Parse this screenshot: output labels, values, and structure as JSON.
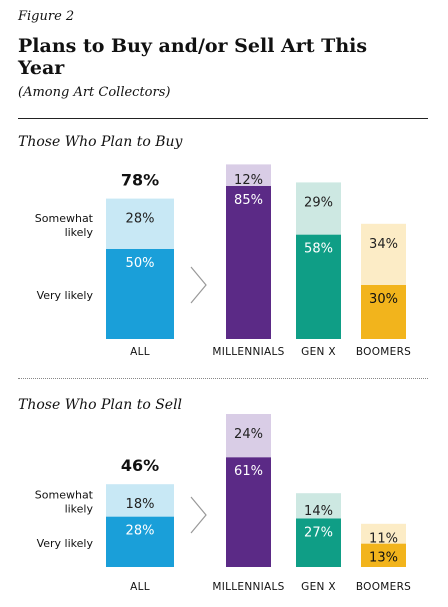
{
  "figure_label": "Figure 2",
  "title": "Plans to Buy and/or Sell Art This Year",
  "subtitle": "(Among Art Collectors)",
  "colors": {
    "all_very": "#1a9fd9",
    "all_somewhat": "#c8e8f5",
    "millennials_very": "#5b2a86",
    "millennials_somewhat": "#d9cde6",
    "genx_very": "#0f9e86",
    "genx_somewhat": "#cde8e2",
    "boomers_very": "#f2b41c",
    "boomers_somewhat": "#fcecc6"
  },
  "chart_data": [
    {
      "type": "bar",
      "stacked": true,
      "title": "Those Who Plan to Buy",
      "categories": [
        "ALL",
        "MILLENNIALS",
        "GEN X",
        "BOOMERS"
      ],
      "series": [
        {
          "name": "Very likely",
          "values": [
            50,
            85,
            58,
            30
          ]
        },
        {
          "name": "Somewhat likely",
          "values": [
            28,
            12,
            29,
            34
          ]
        }
      ],
      "totals": [
        {
          "category": "ALL",
          "label": "78%",
          "value": 78
        }
      ],
      "segment_labels": {
        "Very likely": [
          "50%",
          "85%",
          "58%",
          "30%"
        ],
        "Somewhat likely": [
          "28%",
          "12%",
          "29%",
          "34%"
        ]
      },
      "row_labels": {
        "somewhat": [
          "Somewhat",
          "likely"
        ],
        "very": "Very likely"
      }
    },
    {
      "type": "bar",
      "stacked": true,
      "title": "Those Who Plan to Sell",
      "categories": [
        "ALL",
        "MILLENNIALS",
        "GEN X",
        "BOOMERS"
      ],
      "series": [
        {
          "name": "Very likely",
          "values": [
            28,
            61,
            27,
            13
          ]
        },
        {
          "name": "Somewhat likely",
          "values": [
            18,
            24,
            14,
            11
          ]
        }
      ],
      "totals": [
        {
          "category": "ALL",
          "label": "46%",
          "value": 46
        }
      ],
      "segment_labels": {
        "Very likely": [
          "28%",
          "61%",
          "27%",
          "13%"
        ],
        "Somewhat likely": [
          "18%",
          "24%",
          "14%",
          "11%"
        ]
      },
      "row_labels": {
        "somewhat": [
          "Somewhat",
          "likely"
        ],
        "very": "Very likely"
      }
    }
  ]
}
